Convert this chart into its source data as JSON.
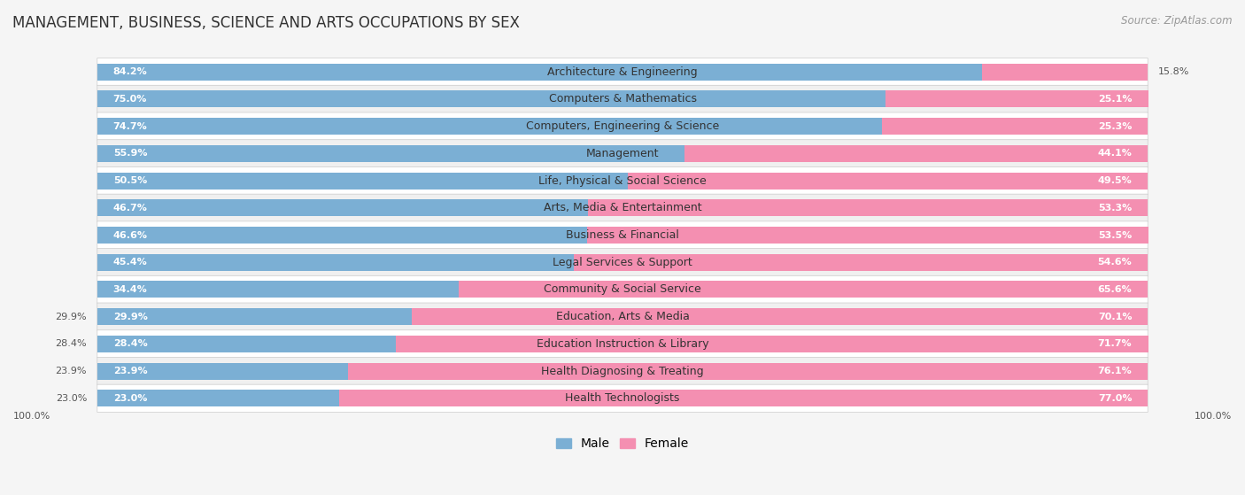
{
  "title": "MANAGEMENT, BUSINESS, SCIENCE AND ARTS OCCUPATIONS BY SEX",
  "source": "Source: ZipAtlas.com",
  "categories": [
    "Architecture & Engineering",
    "Computers & Mathematics",
    "Computers, Engineering & Science",
    "Management",
    "Life, Physical & Social Science",
    "Arts, Media & Entertainment",
    "Business & Financial",
    "Legal Services & Support",
    "Community & Social Service",
    "Education, Arts & Media",
    "Education Instruction & Library",
    "Health Diagnosing & Treating",
    "Health Technologists"
  ],
  "male_pct": [
    84.2,
    75.0,
    74.7,
    55.9,
    50.5,
    46.7,
    46.6,
    45.4,
    34.4,
    29.9,
    28.4,
    23.9,
    23.0
  ],
  "female_pct": [
    15.8,
    25.1,
    25.3,
    44.1,
    49.5,
    53.3,
    53.5,
    54.6,
    65.6,
    70.1,
    71.7,
    76.1,
    77.0
  ],
  "male_color": "#7bafd4",
  "female_color": "#f48fb1",
  "row_color_odd": "#f0f0f0",
  "row_color_even": "#ffffff",
  "bg_color": "#f5f5f5",
  "title_fontsize": 12,
  "label_fontsize": 9,
  "pct_fontsize": 8,
  "legend_fontsize": 10,
  "source_fontsize": 8.5
}
